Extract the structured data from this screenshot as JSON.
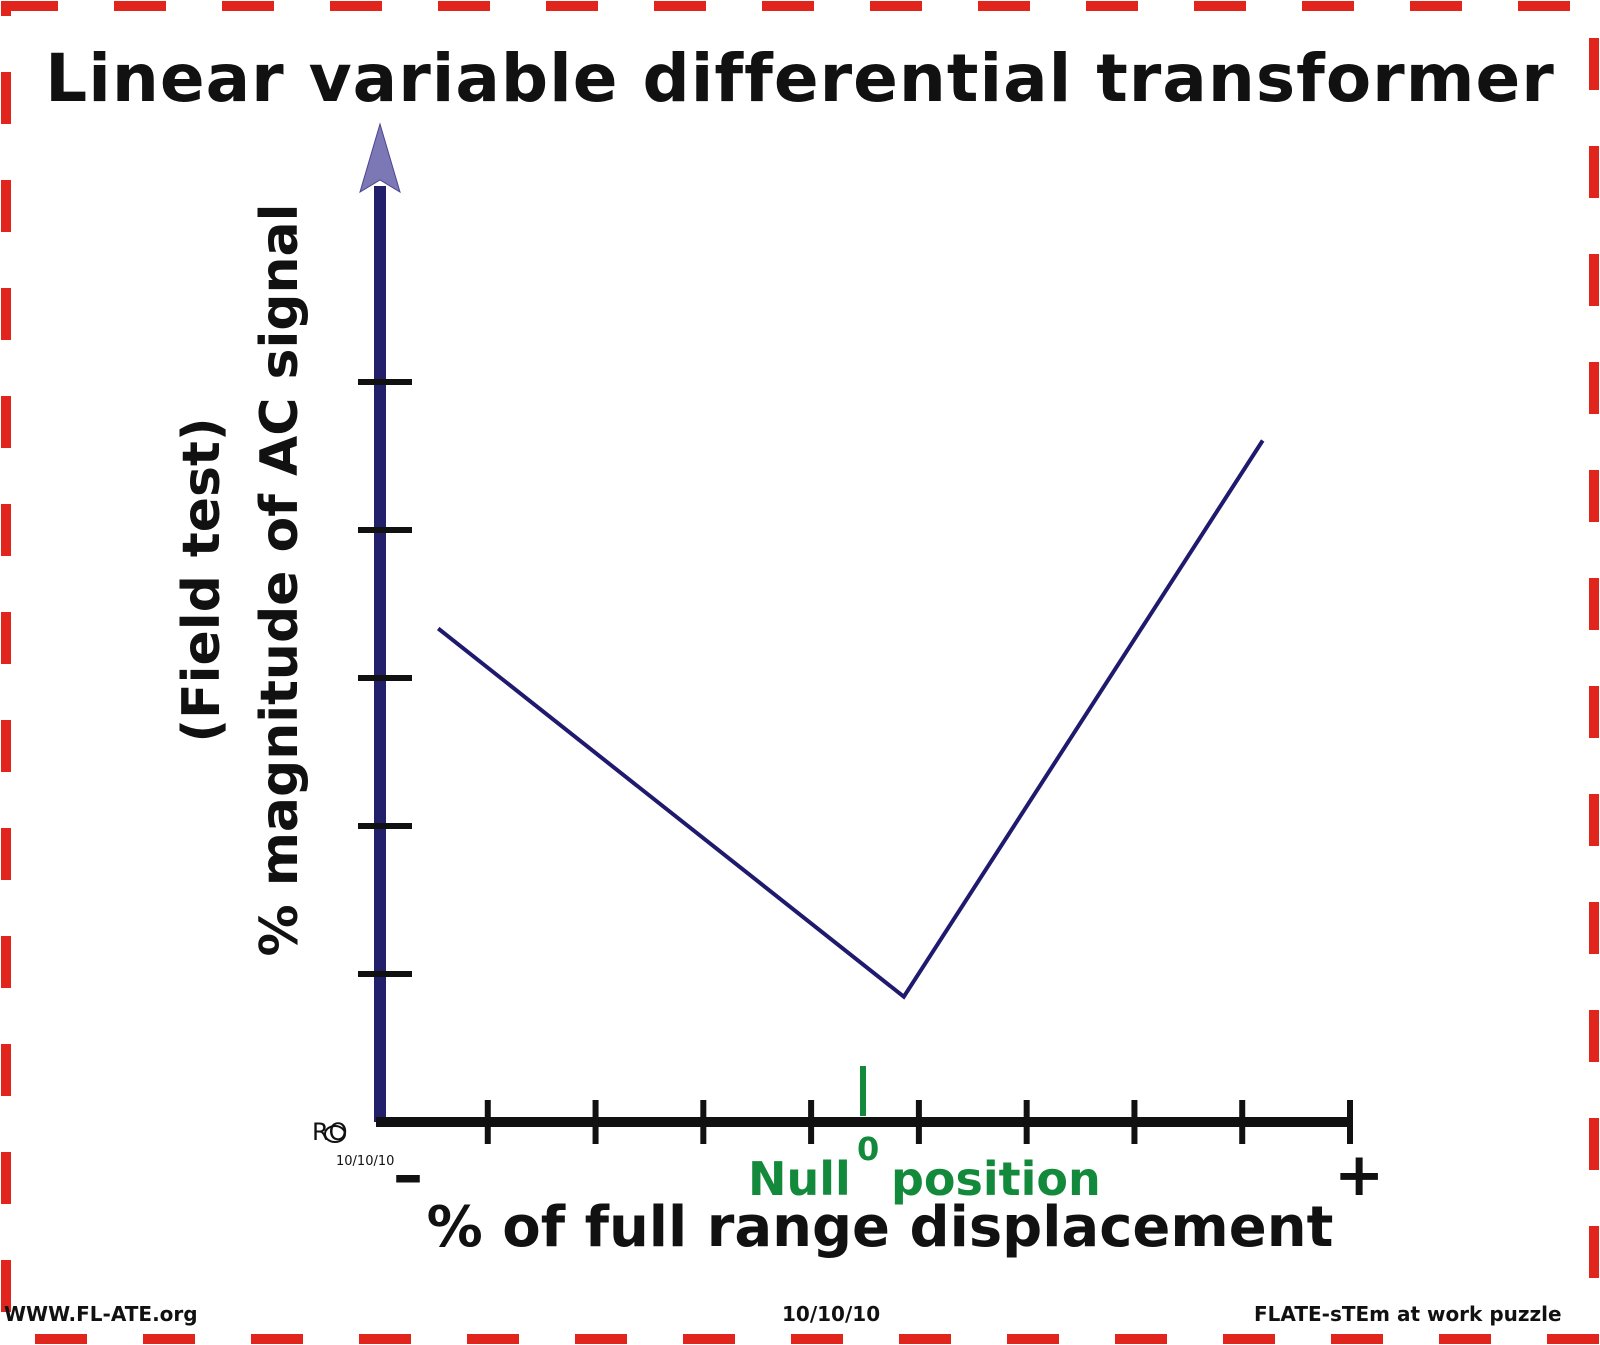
{
  "title": "Linear variable differential transformer",
  "chart_data": {
    "type": "line",
    "title": "Linear variable differential transformer",
    "ylabel_lines": [
      "% magnitude of AC signal",
      "(Field test)"
    ],
    "xlabel": "% of full range displacement",
    "x_ticks_count": 9,
    "y_ticks_count": 5,
    "x_range_labels": {
      "min": "–",
      "max": "+"
    },
    "null_marker": {
      "value": "0",
      "label_left": "Null",
      "label_right": "position"
    },
    "series": [
      {
        "x": [
          -0.88,
          0.08,
          0.82
        ],
        "y": [
          3.15,
          0.8,
          4.35
        ]
      }
    ],
    "xlim": [
      -1,
      1
    ],
    "ylim": [
      0,
      6.0
    ],
    "grid": false,
    "colors": {
      "line": "#1f1a6e",
      "y_axis": "#23206b",
      "x_axis": "#111111",
      "null": "#138a3b",
      "frame": "#e1241c"
    }
  },
  "signature": {
    "initials": "RO",
    "date": "10/10/10"
  },
  "footer": {
    "left": "WWW.FL-ATE.org",
    "center": "10/10/10",
    "right": "FLATE-sTEm at work puzzle"
  }
}
